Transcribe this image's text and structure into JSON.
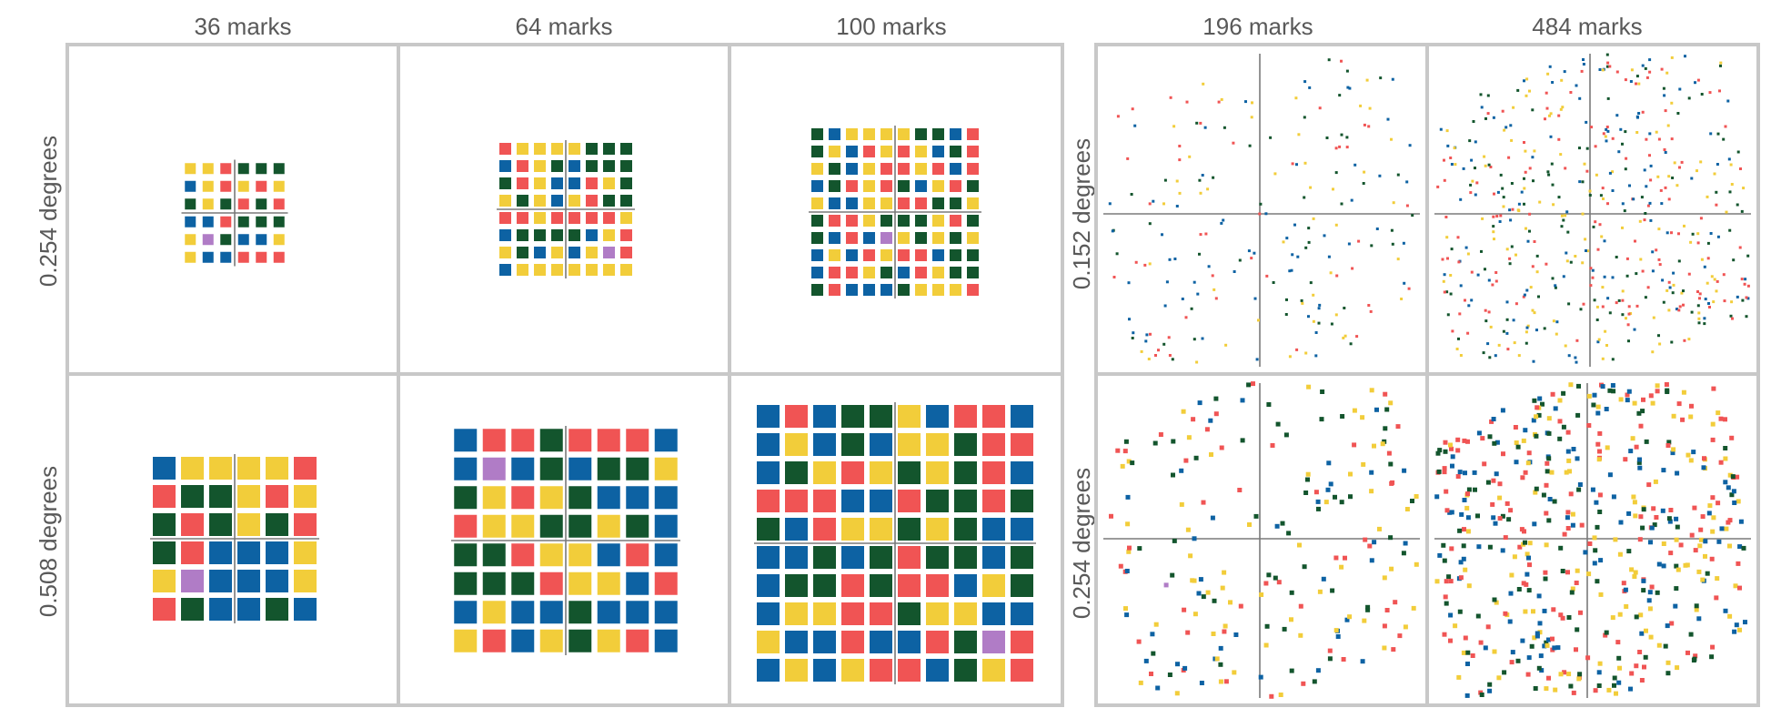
{
  "left_figure": {
    "column_titles": [
      "36 marks",
      "64 marks",
      "100 marks"
    ],
    "row_titles": [
      "0.254 degrees",
      "0.508 degrees"
    ]
  },
  "right_figure": {
    "column_titles": [
      "196 marks",
      "484 marks"
    ],
    "row_titles": [
      "0.152 degrees",
      "0.254 degrees"
    ]
  },
  "colors": {
    "red": "#f05454",
    "yellow": "#f2cd3a",
    "dark_green": "#13552d",
    "blue": "#0d62a3",
    "purple": "#b07cc6",
    "panel_border": "#c8c8c8",
    "crosshair": "#7a7a7a"
  },
  "grid_panels": [
    {
      "name": "36-marks-0.254-degrees",
      "marks": 36,
      "grid_size": 6,
      "rows": [
        "YYRGGG",
        "BYRYRY",
        "GYGRGR",
        "BBRGGG",
        "YPGBBY",
        "YBBRRR"
      ]
    },
    {
      "name": "64-marks-0.254-degrees",
      "marks": 64,
      "grid_size": 8,
      "rows": [
        "RYYYYGGG",
        "BRYGBGGG",
        "GRYBBRYG",
        "YGYBYRGG",
        "RRYRRRRY",
        "BGGGGBYR",
        "YGBYBYPR",
        "BYYYYYYY"
      ]
    },
    {
      "name": "100-marks-0.254-degrees",
      "marks": 100,
      "grid_size": 10,
      "rows": [
        "GBYYYYGGBR",
        "GYBRYRYBGR",
        "YGBYRRYRBR",
        "BGRYRGBYRG",
        "YBBYYRRGGY",
        "GRRYGGGYRG",
        "GBRBPYGYGY",
        "BYBRYRRBGG",
        "BRRYGBRYGG",
        "GRBBBGYYYR"
      ]
    },
    {
      "name": "36-marks-0.508-degrees",
      "marks": 36,
      "grid_size": 6,
      "rows": [
        "BYYYYR",
        "RGGYRY",
        "GRGYGR",
        "GRBBBY",
        "YPBBBY",
        "RGBBGB"
      ]
    },
    {
      "name": "64-marks-0.508-degrees",
      "marks": 64,
      "grid_size": 8,
      "rows": [
        "BRRGRRRB",
        "BPBGBGGY",
        "GYRYGBBB",
        "RYYGGYGB",
        "GGRYYBRB",
        "GGGRYYBR",
        "BYBBGBBB",
        "YRBYGYRB"
      ]
    },
    {
      "name": "100-marks-0.508-degrees",
      "marks": 100,
      "grid_size": 10,
      "rows": [
        "BRBGGYBRRB",
        "BYBGBYYGRR",
        "BGYRYGYGRB",
        "RRRBBRGGRG",
        "GBRYYGYGBB",
        "BBGBGRGGBG",
        "BGGRGRRBYG",
        "BYYRRGYYBB",
        "YBBRBBRGPR",
        "BYBYRRBGYR"
      ]
    }
  ],
  "scatter_panels": [
    {
      "name": "196-marks-0.152-degrees",
      "marks": 196
    },
    {
      "name": "484-marks-0.152-degrees",
      "marks": 484
    },
    {
      "name": "196-marks-0.254-degrees",
      "marks": 196
    },
    {
      "name": "484-marks-0.254-degrees",
      "marks": 484
    }
  ]
}
